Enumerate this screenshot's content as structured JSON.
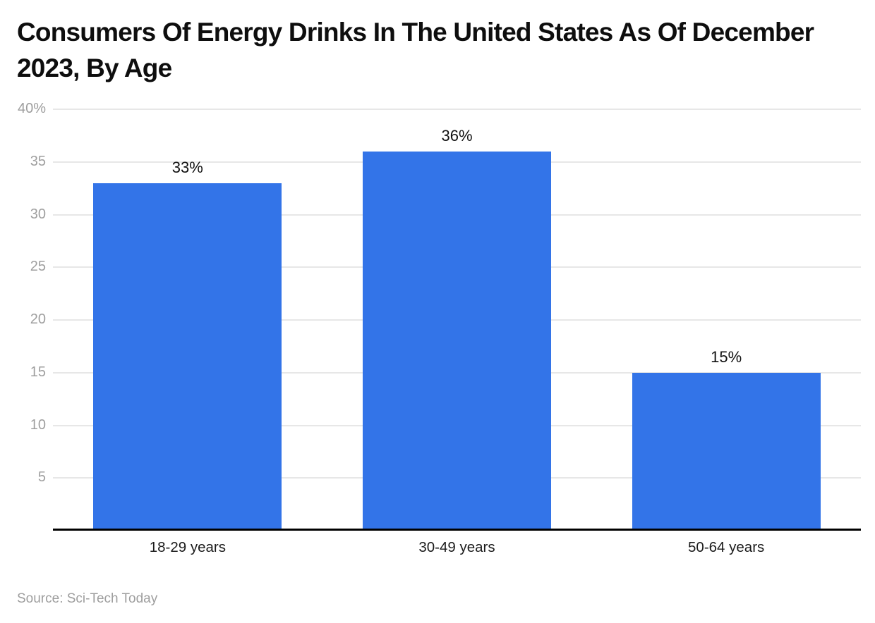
{
  "chart_data": {
    "type": "bar",
    "title": "Consumers Of Energy Drinks In The United States As Of December 2023, By Age",
    "categories": [
      "18-29 years",
      "30-49 years",
      "50-64 years"
    ],
    "values": [
      33,
      36,
      15
    ],
    "value_labels": [
      "33%",
      "36%",
      "15%"
    ],
    "xlabel": "",
    "ylabel": "",
    "ylim": [
      0,
      40
    ],
    "y_ticks": [
      5,
      10,
      15,
      20,
      25,
      30,
      35,
      40
    ],
    "y_tick_labels": [
      "5",
      "10",
      "15",
      "20",
      "25",
      "30",
      "35",
      "40%"
    ],
    "grid": true,
    "legend_position": "none",
    "bar_color": "#3374e8",
    "gridline_color": "#e7e7e7",
    "axis_line_color": "#000000",
    "tick_label_color": "#9e9e9e",
    "value_label_color": "#111111",
    "category_label_color": "#1b1b1b",
    "background_color": "#ffffff"
  },
  "source": {
    "label": "Source: Sci-Tech Today"
  }
}
